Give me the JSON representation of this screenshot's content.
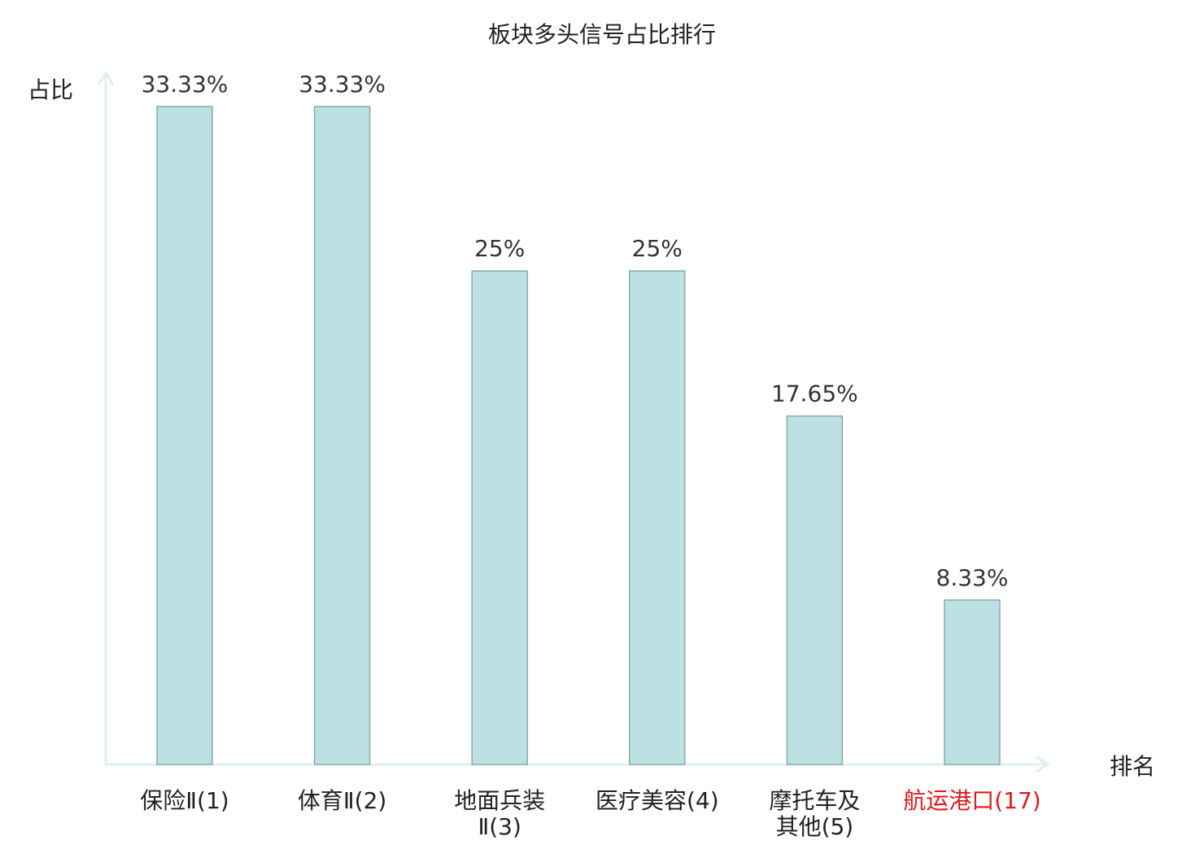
{
  "chart_data": {
    "type": "bar",
    "title": "板块多头信号占比排行",
    "ylabel": "占比",
    "xlabel": "排名",
    "categories": [
      {
        "lines": [
          "保险Ⅱ(1)"
        ],
        "color": "#222222"
      },
      {
        "lines": [
          "体育Ⅱ(2)"
        ],
        "color": "#222222"
      },
      {
        "lines": [
          "地面兵装",
          "Ⅱ(3)"
        ],
        "color": "#222222"
      },
      {
        "lines": [
          "医疗美容(4)"
        ],
        "color": "#222222"
      },
      {
        "lines": [
          "摩托车及",
          "其他(5)"
        ],
        "color": "#222222"
      },
      {
        "lines": [
          "航运港口(17)"
        ],
        "color": "#e0191e"
      }
    ],
    "values": [
      33.33,
      33.33,
      25,
      25,
      17.65,
      8.33
    ],
    "value_labels": [
      "33.33%",
      "33.33%",
      "25%",
      "25%",
      "17.65%",
      "8.33%"
    ],
    "ylim": [
      0,
      33.33
    ],
    "grid": false,
    "colors": {
      "bar_fill": "#bde0e3",
      "bar_stroke": "#88aaaa",
      "axis": "#dff0ee",
      "text": "#333333",
      "highlight": "#e0191e"
    }
  }
}
